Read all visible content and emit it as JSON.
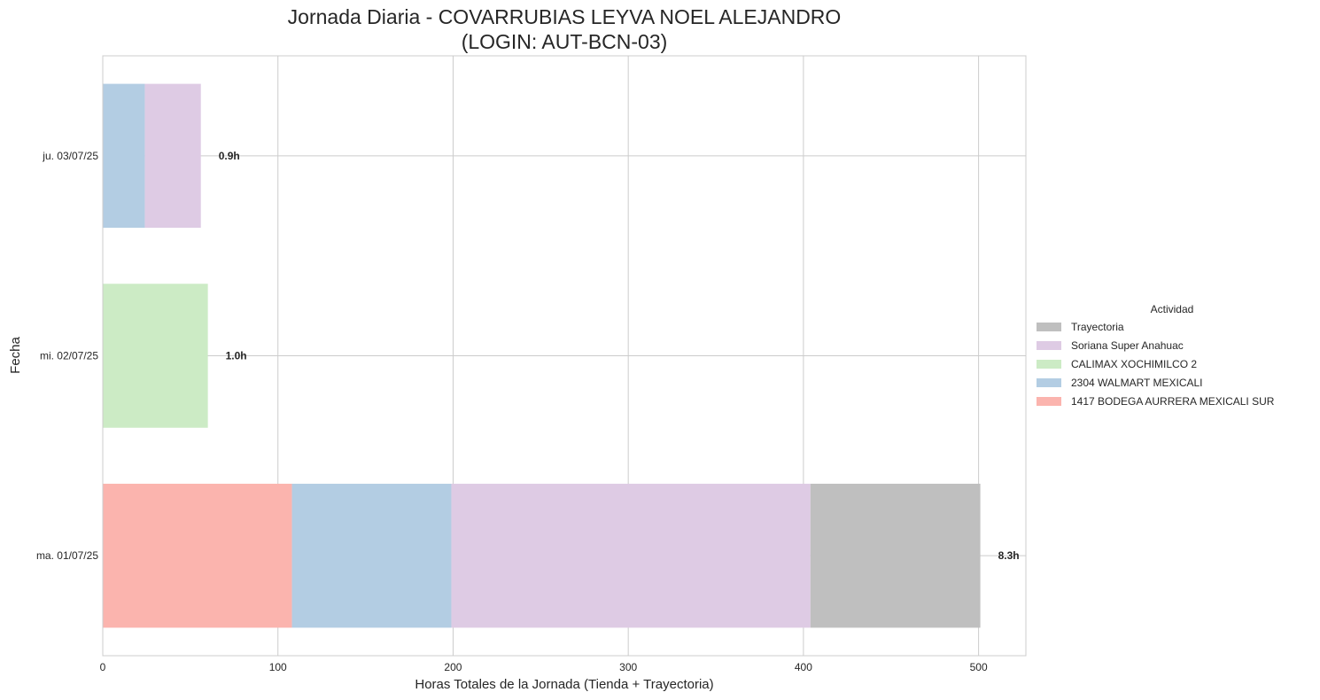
{
  "chart_data": {
    "type": "bar",
    "orientation": "horizontal",
    "stacked": true,
    "title": "Jornada Diaria - COVARRUBIAS LEYVA NOEL ALEJANDRO",
    "subtitle": "(LOGIN: AUT-BCN-03)",
    "xlabel": "Horas Totales de la Jornada (Tienda + Trayectoria)",
    "ylabel": "Fecha",
    "xlim": [
      0,
      527
    ],
    "xticks": [
      "0",
      "100",
      "200",
      "300",
      "400",
      "500"
    ],
    "categories": [
      "ma. 01/07/25",
      "mi. 02/07/25",
      "ju. 03/07/25"
    ],
    "series": [
      {
        "name": "1417 BODEGA AURRERA MEXICALI SUR",
        "color": "#fbb4ae",
        "values": [
          108,
          0,
          0
        ]
      },
      {
        "name": "2304 WALMART MEXICALI",
        "color": "#b3cde3",
        "values": [
          91,
          0,
          24
        ]
      },
      {
        "name": "CALIMAX XOCHIMILCO 2",
        "color": "#ccebc5",
        "values": [
          0,
          60,
          0
        ]
      },
      {
        "name": "Soriana Super Anahuac",
        "color": "#decbe4",
        "values": [
          205,
          0,
          32
        ]
      },
      {
        "name": "Trayectoria",
        "color": "#bfbfbf",
        "values": [
          97,
          0,
          0
        ]
      }
    ],
    "totals_labels": [
      "8.3h",
      "1.0h",
      "0.9h"
    ],
    "legend": {
      "title": "Actividad",
      "placement": "right",
      "order": [
        "Trayectoria",
        "Soriana Super Anahuac",
        "CALIMAX XOCHIMILCO 2",
        "2304 WALMART MEXICALI",
        "1417 BODEGA AURRERA MEXICALI SUR"
      ]
    },
    "grid": true
  }
}
